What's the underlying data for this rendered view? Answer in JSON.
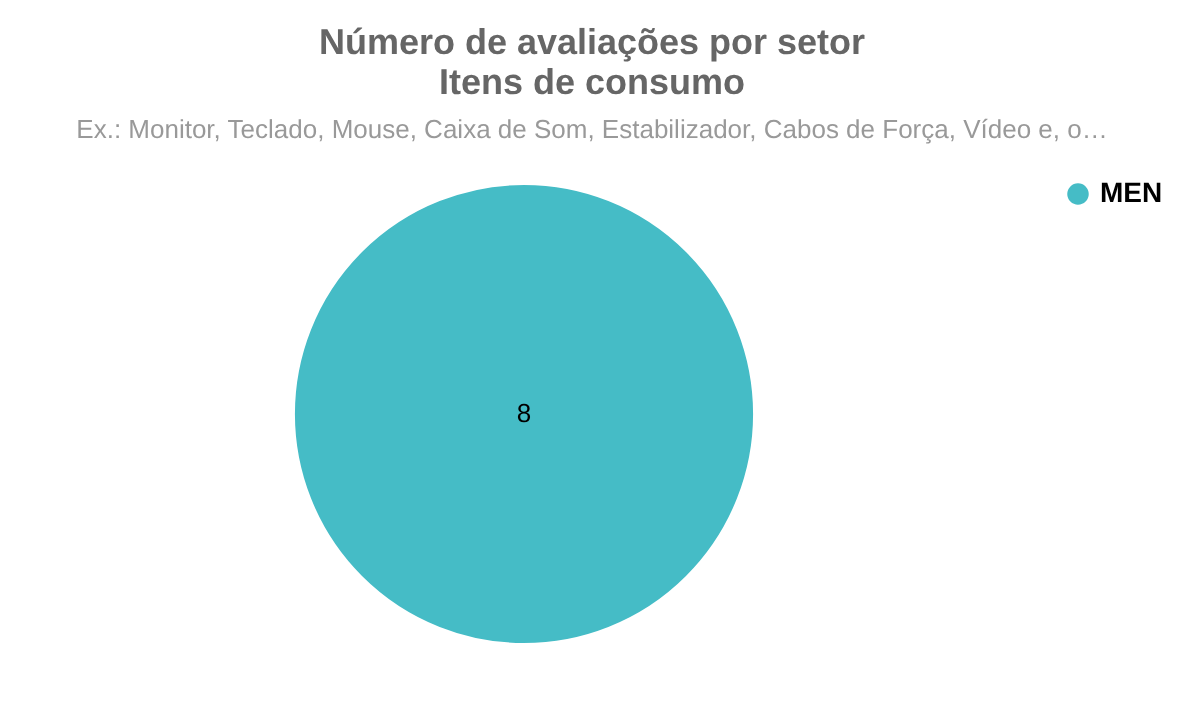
{
  "chart_data": {
    "type": "pie",
    "title": "Número de avaliações por setor\nItens de consumo",
    "subtitle": "Ex.: Monitor, Teclado, Mouse, Caixa de Som, Estabilizador, Cabos de Força, Vídeo e, o…",
    "categories": [
      "MEN"
    ],
    "values": [
      8
    ],
    "colors": [
      "#45bcc6"
    ],
    "data_labels": true,
    "legend": "top right"
  }
}
